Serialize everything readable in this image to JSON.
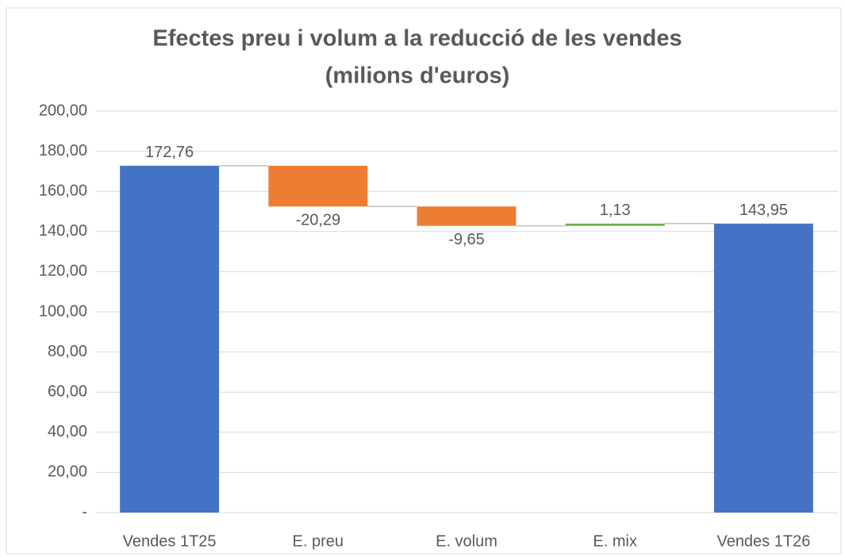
{
  "chart_data": {
    "type": "waterfall",
    "title": [
      "Efectes preu i volum a la reducció de les vendes",
      "(milions d'euros)"
    ],
    "categories": [
      "Vendes 1T25",
      "E. preu",
      "E. volum",
      "E. mix",
      "Vendes 1T26"
    ],
    "values": [
      172.76,
      -20.29,
      -9.65,
      1.13,
      143.95
    ],
    "value_labels": [
      "172,76",
      "-20,29",
      "-9,65",
      "1,13",
      "143,95"
    ],
    "measures": [
      "total",
      "relative",
      "relative",
      "relative",
      "total"
    ],
    "colors": [
      "#4472c4",
      "#ed7d31",
      "#ed7d31",
      "#70ad47",
      "#4472c4"
    ],
    "ylim": [
      0,
      200
    ],
    "yticks": [
      {
        "value": 0,
        "label": "-"
      },
      {
        "value": 20,
        "label": "20,00"
      },
      {
        "value": 40,
        "label": "40,00"
      },
      {
        "value": 60,
        "label": "60,00"
      },
      {
        "value": 80,
        "label": "80,00"
      },
      {
        "value": 100,
        "label": "100,00"
      },
      {
        "value": 120,
        "label": "120,00"
      },
      {
        "value": 140,
        "label": "140,00"
      },
      {
        "value": 160,
        "label": "160,00"
      },
      {
        "value": 180,
        "label": "180,00"
      },
      {
        "value": 200,
        "label": "200,00"
      }
    ],
    "grid": true
  }
}
